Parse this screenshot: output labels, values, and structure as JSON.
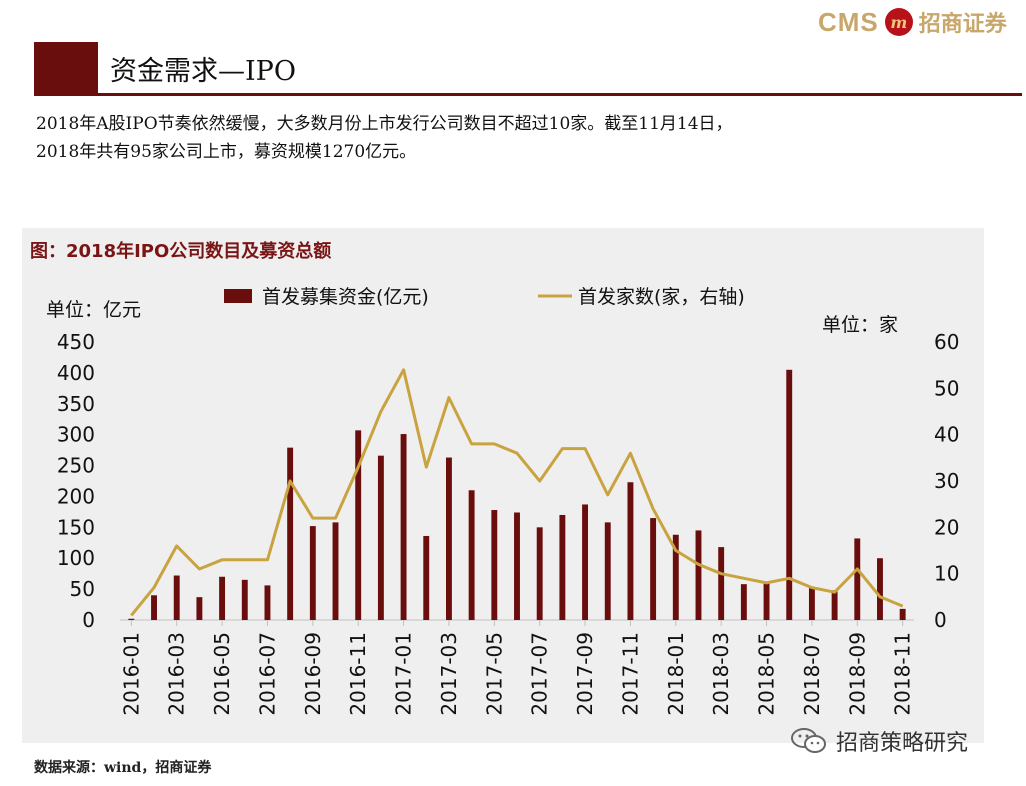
{
  "header": {
    "logo_en": "CMS",
    "logo_mark": "m",
    "logo_cn": "招商证券",
    "title": "资金需求—IPO"
  },
  "description": {
    "line1": "2018年A股IPO节奏依然缓慢，大多数月份上市发行公司数目不超过10家。截至11月14日，",
    "line2": "2018年共有95家公司上市，募资规模1270亿元。"
  },
  "chart_title": "图：2018年IPO公司数目及募资总额",
  "source": "数据来源：wind，招商证券",
  "watermark": "招商策略研究",
  "colors": {
    "bar": "#6a0d0d",
    "line": "#c8a340",
    "accent": "#6a0d0d"
  },
  "chart_data": {
    "type": "bar",
    "categories": [
      "2016-01",
      "2016-02",
      "2016-03",
      "2016-04",
      "2016-05",
      "2016-06",
      "2016-07",
      "2016-08",
      "2016-09",
      "2016-10",
      "2016-11",
      "2016-12",
      "2017-01",
      "2017-02",
      "2017-03",
      "2017-04",
      "2017-05",
      "2017-06",
      "2017-07",
      "2017-08",
      "2017-09",
      "2017-10",
      "2017-11",
      "2017-12",
      "2018-01",
      "2018-02",
      "2018-03",
      "2018-04",
      "2018-05",
      "2018-06",
      "2018-07",
      "2018-08",
      "2018-09",
      "2018-10",
      "2018-11"
    ],
    "x_tick_labels": [
      "2016-01",
      "2016-03",
      "2016-05",
      "2016-07",
      "2016-09",
      "2016-11",
      "2017-01",
      "2017-03",
      "2017-05",
      "2017-07",
      "2017-09",
      "2017-11",
      "2018-01",
      "2018-03",
      "2018-05",
      "2018-07",
      "2018-09",
      "2018-11"
    ],
    "series": [
      {
        "name": "首发募集资金(亿元)",
        "type": "bar",
        "axis": "left",
        "values": [
          2,
          40,
          72,
          37,
          70,
          65,
          56,
          279,
          152,
          158,
          307,
          266,
          301,
          136,
          263,
          210,
          178,
          174,
          150,
          170,
          187,
          158,
          223,
          165,
          138,
          145,
          118,
          58,
          60,
          405,
          52,
          48,
          132,
          100,
          18
        ]
      },
      {
        "name": "首发家数(家，右轴)",
        "type": "line",
        "axis": "right",
        "values": [
          1,
          7,
          16,
          11,
          13,
          13,
          13,
          30,
          22,
          22,
          33,
          45,
          54,
          33,
          48,
          38,
          38,
          36,
          30,
          37,
          37,
          27,
          36,
          24,
          15,
          12,
          10,
          9,
          8,
          9,
          7,
          6,
          11,
          5,
          3
        ]
      }
    ],
    "left_axis": {
      "label": "单位：亿元",
      "ylim": [
        0,
        450
      ],
      "ticks": [
        "0",
        "50",
        "100",
        "150",
        "200",
        "250",
        "300",
        "350",
        "400",
        "450"
      ]
    },
    "right_axis": {
      "label": "单位：家",
      "ylim": [
        0,
        60
      ],
      "ticks": [
        "0",
        "10",
        "20",
        "30",
        "40",
        "50",
        "60"
      ]
    },
    "legend": [
      "首发募集资金(亿元)",
      "首发家数(家，右轴)"
    ],
    "legend_position": "top"
  }
}
